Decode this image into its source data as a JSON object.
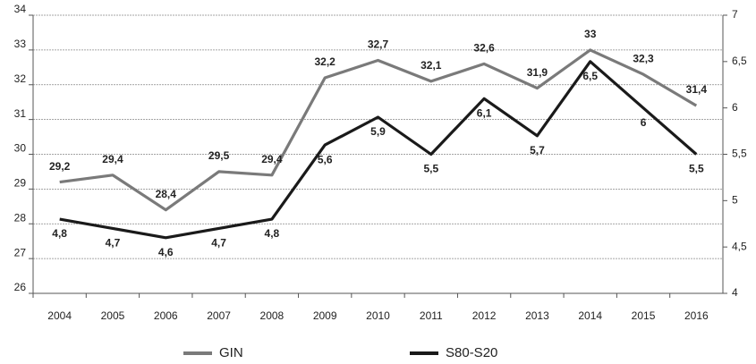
{
  "chart_data": {
    "type": "line",
    "categories": [
      "2004",
      "2005",
      "2006",
      "2007",
      "2008",
      "2009",
      "2010",
      "2011",
      "2012",
      "2013",
      "2014",
      "2015",
      "2016"
    ],
    "series": [
      {
        "name": "GIN",
        "color": "#7a7a7a",
        "values": [
          29.2,
          29.4,
          28.4,
          29.5,
          29.4,
          32.2,
          32.7,
          32.1,
          32.6,
          31.9,
          33,
          32.3,
          31.4
        ],
        "value_labels": [
          "29,2",
          "29,4",
          "28,4",
          "29,5",
          "29,4",
          "32,2",
          "32,7",
          "32,1",
          "32,6",
          "31,9",
          "33",
          "32,3",
          "31,4"
        ]
      },
      {
        "name": "S80-S20",
        "color": "#1a1a1a",
        "axis": "y2",
        "values": [
          4.8,
          4.7,
          4.6,
          4.7,
          4.8,
          5.6,
          5.9,
          5.5,
          6.1,
          5.7,
          6.5,
          6,
          5.5
        ],
        "value_labels": [
          "4,8",
          "4,7",
          "4,6",
          "4,7",
          "4,8",
          "5,6",
          "5,9",
          "5,5",
          "6,1",
          "5,7",
          "6,5",
          "6",
          "5,5"
        ]
      }
    ],
    "ylim": [
      26,
      34
    ],
    "yticks": [
      26,
      27,
      28,
      29,
      30,
      31,
      32,
      33,
      34
    ],
    "y2lim": [
      4,
      7
    ],
    "y2ticks": [
      4,
      {
        "value": 4.5,
        "label": "4,5"
      },
      5,
      {
        "value": 5.5,
        "label": "5,5"
      },
      6,
      {
        "value": 6.5,
        "label": "6,5"
      },
      7
    ],
    "grid": true,
    "legend": "bottom"
  }
}
